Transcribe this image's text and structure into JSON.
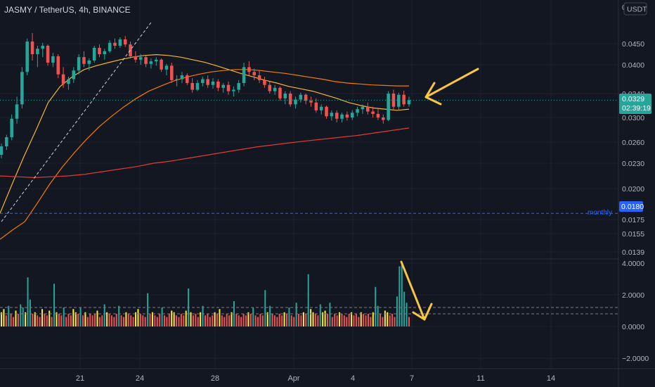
{
  "header": {
    "symbol_title": "JASMY / TetherUS, 4h, BINANCE"
  },
  "price_axis": {
    "currency": "USDT",
    "top_tick": "0",
    "ticks": [
      "0.0450",
      "0.0400",
      "0.0340",
      "0.0300",
      "0.0260",
      "0.0230",
      "0.0200",
      "0.0175",
      "0.0155",
      "0.0139"
    ],
    "last_price_label": "0.0329",
    "countdown_label": "02:39:19",
    "monthly_level_label": "0.0180",
    "monthly_text": "monthly"
  },
  "volume_axis": {
    "ticks": [
      "4.0000",
      "2.0000",
      "0.0000",
      "−2.0000"
    ]
  },
  "time_axis": {
    "labels": [
      "21",
      "24",
      "28",
      "Apr",
      "4",
      "7",
      "11",
      "14"
    ]
  },
  "colors": {
    "background": "#131722",
    "grid": "#1e222d",
    "up_candle": "#26a69a",
    "down_candle": "#ef5350",
    "ma_fast": "#f7b52c",
    "ma_mid": "#f57c00",
    "ma_slow": "#e53935",
    "arrow": "#f9c642",
    "last_price_badge": "#26a69a",
    "monthly_badge": "#2962ff",
    "vol_green": "#26a69a",
    "vol_yellow": "#ffeb3b",
    "vol_red": "#ef5350"
  },
  "chart_data": {
    "type": "candlestick",
    "title": "JASMY / TetherUS, 4h, BINANCE",
    "timeframe": "4h",
    "x_labels": [
      "21",
      "24",
      "28",
      "Apr",
      "4",
      "7",
      "11",
      "14"
    ],
    "ylim": [
      0.0135,
      0.05
    ],
    "last_price": 0.0329,
    "monthly_level": 0.018,
    "candles": [
      {
        "o": 0.0242,
        "h": 0.0258,
        "l": 0.0237,
        "c": 0.0254
      },
      {
        "o": 0.0254,
        "h": 0.0272,
        "l": 0.0249,
        "c": 0.0268
      },
      {
        "o": 0.0268,
        "h": 0.0305,
        "l": 0.0263,
        "c": 0.0298
      },
      {
        "o": 0.0298,
        "h": 0.0335,
        "l": 0.029,
        "c": 0.0322
      },
      {
        "o": 0.0322,
        "h": 0.0395,
        "l": 0.0315,
        "c": 0.0385
      },
      {
        "o": 0.0385,
        "h": 0.0462,
        "l": 0.0378,
        "c": 0.0455
      },
      {
        "o": 0.0455,
        "h": 0.0475,
        "l": 0.041,
        "c": 0.0425
      },
      {
        "o": 0.0425,
        "h": 0.0445,
        "l": 0.0395,
        "c": 0.0438
      },
      {
        "o": 0.0438,
        "h": 0.0452,
        "l": 0.0418,
        "c": 0.0445
      },
      {
        "o": 0.0445,
        "h": 0.0448,
        "l": 0.0398,
        "c": 0.0405
      },
      {
        "o": 0.0405,
        "h": 0.0428,
        "l": 0.0395,
        "c": 0.042
      },
      {
        "o": 0.042,
        "h": 0.0425,
        "l": 0.0372,
        "c": 0.038
      },
      {
        "o": 0.038,
        "h": 0.0395,
        "l": 0.0352,
        "c": 0.036
      },
      {
        "o": 0.036,
        "h": 0.0375,
        "l": 0.0348,
        "c": 0.037
      },
      {
        "o": 0.037,
        "h": 0.0395,
        "l": 0.0362,
        "c": 0.0388
      },
      {
        "o": 0.0388,
        "h": 0.0425,
        "l": 0.038,
        "c": 0.0418
      },
      {
        "o": 0.0418,
        "h": 0.0432,
        "l": 0.0395,
        "c": 0.0402
      },
      {
        "o": 0.0402,
        "h": 0.0415,
        "l": 0.0388,
        "c": 0.041
      },
      {
        "o": 0.041,
        "h": 0.0445,
        "l": 0.0405,
        "c": 0.044
      },
      {
        "o": 0.044,
        "h": 0.0448,
        "l": 0.0418,
        "c": 0.0425
      },
      {
        "o": 0.0425,
        "h": 0.0438,
        "l": 0.0412,
        "c": 0.0432
      },
      {
        "o": 0.0432,
        "h": 0.0458,
        "l": 0.0428,
        "c": 0.0452
      },
      {
        "o": 0.0452,
        "h": 0.0462,
        "l": 0.0438,
        "c": 0.0445
      },
      {
        "o": 0.0445,
        "h": 0.0465,
        "l": 0.044,
        "c": 0.046
      },
      {
        "o": 0.046,
        "h": 0.0468,
        "l": 0.0442,
        "c": 0.0448
      },
      {
        "o": 0.0448,
        "h": 0.0455,
        "l": 0.0415,
        "c": 0.042
      },
      {
        "o": 0.042,
        "h": 0.0432,
        "l": 0.0405,
        "c": 0.0412
      },
      {
        "o": 0.0412,
        "h": 0.0425,
        "l": 0.04,
        "c": 0.0418
      },
      {
        "o": 0.0418,
        "h": 0.0422,
        "l": 0.0395,
        "c": 0.0402
      },
      {
        "o": 0.0402,
        "h": 0.0415,
        "l": 0.0392,
        "c": 0.0408
      },
      {
        "o": 0.0408,
        "h": 0.0418,
        "l": 0.0398,
        "c": 0.0412
      },
      {
        "o": 0.0412,
        "h": 0.0415,
        "l": 0.0385,
        "c": 0.039
      },
      {
        "o": 0.039,
        "h": 0.0402,
        "l": 0.0378,
        "c": 0.0398
      },
      {
        "o": 0.0398,
        "h": 0.0405,
        "l": 0.0362,
        "c": 0.0368
      },
      {
        "o": 0.0368,
        "h": 0.0378,
        "l": 0.0355,
        "c": 0.037
      },
      {
        "o": 0.037,
        "h": 0.0385,
        "l": 0.0362,
        "c": 0.0378
      },
      {
        "o": 0.0378,
        "h": 0.0382,
        "l": 0.0358,
        "c": 0.0362
      },
      {
        "o": 0.0362,
        "h": 0.0372,
        "l": 0.0342,
        "c": 0.0348
      },
      {
        "o": 0.0348,
        "h": 0.0368,
        "l": 0.0345,
        "c": 0.0362
      },
      {
        "o": 0.0362,
        "h": 0.0375,
        "l": 0.0355,
        "c": 0.037
      },
      {
        "o": 0.037,
        "h": 0.0378,
        "l": 0.0352,
        "c": 0.0358
      },
      {
        "o": 0.0358,
        "h": 0.0372,
        "l": 0.035,
        "c": 0.0365
      },
      {
        "o": 0.0365,
        "h": 0.037,
        "l": 0.0345,
        "c": 0.0352
      },
      {
        "o": 0.0352,
        "h": 0.0362,
        "l": 0.0342,
        "c": 0.0358
      },
      {
        "o": 0.0358,
        "h": 0.0365,
        "l": 0.0338,
        "c": 0.0345
      },
      {
        "o": 0.0345,
        "h": 0.0355,
        "l": 0.0335,
        "c": 0.0348
      },
      {
        "o": 0.0348,
        "h": 0.0368,
        "l": 0.0342,
        "c": 0.0362
      },
      {
        "o": 0.0362,
        "h": 0.0405,
        "l": 0.0355,
        "c": 0.0395
      },
      {
        "o": 0.0395,
        "h": 0.0408,
        "l": 0.0378,
        "c": 0.0385
      },
      {
        "o": 0.0385,
        "h": 0.0392,
        "l": 0.0368,
        "c": 0.0378
      },
      {
        "o": 0.0378,
        "h": 0.0388,
        "l": 0.0362,
        "c": 0.0368
      },
      {
        "o": 0.0368,
        "h": 0.0375,
        "l": 0.0352,
        "c": 0.0358
      },
      {
        "o": 0.0358,
        "h": 0.0365,
        "l": 0.034,
        "c": 0.0345
      },
      {
        "o": 0.0345,
        "h": 0.0358,
        "l": 0.0338,
        "c": 0.0352
      },
      {
        "o": 0.0352,
        "h": 0.0355,
        "l": 0.0328,
        "c": 0.0332
      },
      {
        "o": 0.0332,
        "h": 0.0345,
        "l": 0.0322,
        "c": 0.034
      },
      {
        "o": 0.034,
        "h": 0.0345,
        "l": 0.0318,
        "c": 0.0322
      },
      {
        "o": 0.0322,
        "h": 0.0335,
        "l": 0.0315,
        "c": 0.033
      },
      {
        "o": 0.033,
        "h": 0.0342,
        "l": 0.0325,
        "c": 0.0338
      },
      {
        "o": 0.0338,
        "h": 0.034,
        "l": 0.0322,
        "c": 0.0328
      },
      {
        "o": 0.0328,
        "h": 0.0335,
        "l": 0.0318,
        "c": 0.0325
      },
      {
        "o": 0.0325,
        "h": 0.0332,
        "l": 0.0308,
        "c": 0.0312
      },
      {
        "o": 0.0312,
        "h": 0.0322,
        "l": 0.0305,
        "c": 0.0318
      },
      {
        "o": 0.0318,
        "h": 0.032,
        "l": 0.0298,
        "c": 0.0302
      },
      {
        "o": 0.0302,
        "h": 0.0312,
        "l": 0.0295,
        "c": 0.0308
      },
      {
        "o": 0.0308,
        "h": 0.0312,
        "l": 0.0292,
        "c": 0.0298
      },
      {
        "o": 0.0298,
        "h": 0.0308,
        "l": 0.0292,
        "c": 0.0305
      },
      {
        "o": 0.0305,
        "h": 0.031,
        "l": 0.0295,
        "c": 0.03
      },
      {
        "o": 0.03,
        "h": 0.0312,
        "l": 0.0296,
        "c": 0.0308
      },
      {
        "o": 0.0308,
        "h": 0.0318,
        "l": 0.0302,
        "c": 0.0314
      },
      {
        "o": 0.0314,
        "h": 0.0322,
        "l": 0.0306,
        "c": 0.0318
      },
      {
        "o": 0.0318,
        "h": 0.0325,
        "l": 0.0305,
        "c": 0.031
      },
      {
        "o": 0.031,
        "h": 0.0318,
        "l": 0.03,
        "c": 0.0306
      },
      {
        "o": 0.0306,
        "h": 0.0314,
        "l": 0.0296,
        "c": 0.03
      },
      {
        "o": 0.03,
        "h": 0.0305,
        "l": 0.029,
        "c": 0.0296
      },
      {
        "o": 0.0296,
        "h": 0.0345,
        "l": 0.0294,
        "c": 0.034
      },
      {
        "o": 0.034,
        "h": 0.0348,
        "l": 0.0312,
        "c": 0.0318
      },
      {
        "o": 0.0318,
        "h": 0.0342,
        "l": 0.0312,
        "c": 0.0338
      },
      {
        "o": 0.0338,
        "h": 0.0346,
        "l": 0.0318,
        "c": 0.0322
      },
      {
        "o": 0.0322,
        "h": 0.0335,
        "l": 0.0318,
        "c": 0.0329
      }
    ],
    "moving_averages": [
      {
        "color": "#f7b52c",
        "values": [
          0.018,
          0.0205,
          0.024,
          0.028,
          0.0325,
          0.0355,
          0.0375,
          0.039,
          0.0398,
          0.0405,
          0.0412,
          0.0418,
          0.0422,
          0.0424,
          0.0422,
          0.0418,
          0.0412,
          0.0406,
          0.0398,
          0.039,
          0.0382,
          0.0375,
          0.0368,
          0.0362,
          0.0355,
          0.035,
          0.0345,
          0.0338,
          0.0332,
          0.0325,
          0.032,
          0.0316,
          0.0314,
          0.0312,
          0.0314
        ]
      },
      {
        "color": "#f57c00",
        "values": [
          0.015,
          0.016,
          0.0172,
          0.0188,
          0.0205,
          0.0225,
          0.0245,
          0.0265,
          0.0285,
          0.0302,
          0.0318,
          0.0332,
          0.0345,
          0.0356,
          0.0366,
          0.0374,
          0.038,
          0.0385,
          0.0388,
          0.039,
          0.039,
          0.0388,
          0.0385,
          0.0382,
          0.0378,
          0.0374,
          0.037,
          0.0365,
          0.0362,
          0.036,
          0.0358,
          0.0357,
          0.0356,
          0.0356
        ]
      },
      {
        "color": "#e53935",
        "values": [
          0.0215,
          0.0214,
          0.0213,
          0.0214,
          0.0215,
          0.0217,
          0.022,
          0.0223,
          0.0226,
          0.023,
          0.0233,
          0.0237,
          0.0241,
          0.0245,
          0.0249,
          0.0253,
          0.0256,
          0.0259,
          0.0262,
          0.0265,
          0.0268,
          0.0271,
          0.0275,
          0.0279,
          0.0283
        ]
      }
    ],
    "volume": {
      "ylim": [
        -2.5,
        4.2
      ],
      "values": [
        0.9,
        1.1,
        0.7,
        1.3,
        0.8,
        0.6,
        1.0,
        0.8,
        1.4,
        1.2,
        0.9,
        3.1,
        1.7,
        0.8,
        0.9,
        0.7,
        0.6,
        1.1,
        0.8,
        0.7,
        1.0,
        0.6,
        2.7,
        0.9,
        0.8,
        0.7,
        1.2,
        0.6,
        0.8,
        0.7,
        1.1,
        0.9,
        0.8,
        1.2,
        0.7,
        0.9,
        0.6,
        0.8,
        0.7,
        0.8,
        1.0,
        0.6,
        0.7,
        1.4,
        0.9,
        0.8,
        0.7,
        0.6,
        0.8,
        1.3,
        0.7,
        0.6,
        0.9,
        0.8,
        0.7,
        0.6,
        0.9,
        1.1,
        0.8,
        0.7,
        0.6,
        2.1,
        0.8,
        0.9,
        0.7,
        0.6,
        0.8,
        1.2,
        0.7,
        0.6,
        0.8,
        1.0,
        0.9,
        0.7,
        0.6,
        0.8,
        0.7,
        1.0,
        2.4,
        0.9,
        0.7,
        0.8,
        0.6,
        0.9,
        1.3,
        0.7,
        0.8,
        0.6,
        0.7,
        0.9,
        0.8,
        1.1,
        0.7,
        0.6,
        0.8,
        0.7,
        0.9,
        1.6,
        0.8,
        0.7,
        0.6,
        0.8,
        0.7,
        0.9,
        0.8,
        1.2,
        0.7,
        0.6,
        0.8,
        0.7,
        2.3,
        0.9,
        1.3,
        0.8,
        0.7,
        0.6,
        0.8,
        0.7,
        0.9,
        0.8,
        1.2,
        0.7,
        0.6,
        1.5,
        0.8,
        0.7,
        0.9,
        0.8,
        3.3,
        1.1,
        0.9,
        0.8,
        0.7,
        1.4,
        0.9,
        1.0,
        0.8,
        1.5,
        0.6,
        0.8,
        0.7,
        0.9,
        0.8,
        0.7,
        0.6,
        0.8,
        0.9,
        0.7,
        0.8,
        0.6,
        0.9,
        0.8,
        0.7,
        0.8,
        0.6,
        0.9,
        2.5,
        1.3,
        0.8,
        0.6,
        1.0,
        0.9,
        0.7,
        0.8,
        0.6,
        1.9,
        3.8,
        3.9,
        2.2,
        1.5,
        0.6
      ]
    },
    "annotations": [
      {
        "type": "trendline",
        "style": "dashed",
        "color": "#d1d4dc",
        "from": {
          "bar": 0,
          "price": 0.0172
        },
        "to": {
          "bar": 29,
          "price": 0.05
        }
      },
      {
        "type": "arrow",
        "direction": "pointing-left-down",
        "target": "price-area-right",
        "color": "#f9c642"
      },
      {
        "type": "arrow",
        "direction": "pointing-down-right",
        "target": "volume-area-right",
        "color": "#f9c642"
      },
      {
        "type": "horizontal-line",
        "style": "dashed",
        "price": 0.018,
        "color": "#2962ff",
        "label": "monthly"
      },
      {
        "type": "horizontal-line",
        "style": "dashed",
        "pane": "volume",
        "value": 1.2,
        "color": "#787b86"
      },
      {
        "type": "horizontal-line",
        "style": "dashed",
        "pane": "volume",
        "value": 0.8,
        "color": "#787b86"
      }
    ]
  }
}
